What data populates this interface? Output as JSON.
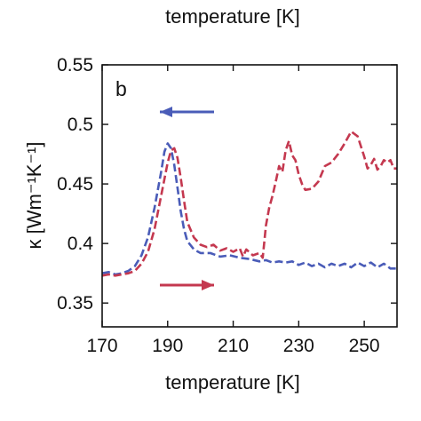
{
  "header": {
    "top_label": "temperature [K]"
  },
  "chart_data": {
    "type": "line",
    "panel_label": "b",
    "xlabel": "temperature [K]",
    "ylabel": "κ [Wm⁻¹K⁻¹]",
    "xlim": [
      170,
      260
    ],
    "ylim": [
      0.33,
      0.55
    ],
    "xticks": [
      170,
      190,
      210,
      230,
      250
    ],
    "yticks": [
      0.35,
      0.4,
      0.45,
      0.5,
      0.55
    ],
    "ytick_labels": [
      "0.35",
      "0.4",
      "0.45",
      "0.5",
      "0.55"
    ],
    "grid": false,
    "series": [
      {
        "color": "#4a5cb8",
        "style": "dashed",
        "direction_arrow": "left",
        "points": [
          [
            170,
            0.375
          ],
          [
            172,
            0.376
          ],
          [
            174,
            0.374
          ],
          [
            176,
            0.375
          ],
          [
            178,
            0.377
          ],
          [
            180,
            0.381
          ],
          [
            182,
            0.39
          ],
          [
            184,
            0.405
          ],
          [
            186,
            0.43
          ],
          [
            188,
            0.46
          ],
          [
            189,
            0.477
          ],
          [
            190,
            0.484
          ],
          [
            191,
            0.48
          ],
          [
            192,
            0.466
          ],
          [
            193,
            0.447
          ],
          [
            194,
            0.427
          ],
          [
            195,
            0.412
          ],
          [
            196,
            0.402
          ],
          [
            198,
            0.395
          ],
          [
            200,
            0.392
          ],
          [
            203,
            0.392
          ],
          [
            206,
            0.389
          ],
          [
            209,
            0.39
          ],
          [
            212,
            0.388
          ],
          [
            215,
            0.387
          ],
          [
            218,
            0.385
          ],
          [
            220,
            0.386
          ],
          [
            222,
            0.384
          ],
          [
            224,
            0.385
          ],
          [
            226,
            0.384
          ],
          [
            228,
            0.385
          ],
          [
            230,
            0.382
          ],
          [
            232,
            0.384
          ],
          [
            234,
            0.381
          ],
          [
            236,
            0.383
          ],
          [
            238,
            0.38
          ],
          [
            240,
            0.383
          ],
          [
            242,
            0.381
          ],
          [
            244,
            0.383
          ],
          [
            246,
            0.38
          ],
          [
            248,
            0.384
          ],
          [
            250,
            0.381
          ],
          [
            252,
            0.384
          ],
          [
            254,
            0.38
          ],
          [
            256,
            0.383
          ],
          [
            258,
            0.379
          ],
          [
            260,
            0.379
          ]
        ]
      },
      {
        "color": "#c4384f",
        "style": "dashed",
        "direction_arrow": "right",
        "points": [
          [
            170,
            0.373
          ],
          [
            172,
            0.374
          ],
          [
            174,
            0.373
          ],
          [
            176,
            0.374
          ],
          [
            178,
            0.375
          ],
          [
            180,
            0.377
          ],
          [
            182,
            0.383
          ],
          [
            184,
            0.393
          ],
          [
            186,
            0.412
          ],
          [
            188,
            0.44
          ],
          [
            190,
            0.468
          ],
          [
            191,
            0.478
          ],
          [
            192,
            0.48
          ],
          [
            193,
            0.472
          ],
          [
            194,
            0.455
          ],
          [
            195,
            0.436
          ],
          [
            196,
            0.418
          ],
          [
            198,
            0.405
          ],
          [
            200,
            0.399
          ],
          [
            202,
            0.397
          ],
          [
            204,
            0.399
          ],
          [
            206,
            0.394
          ],
          [
            208,
            0.396
          ],
          [
            210,
            0.393
          ],
          [
            212,
            0.396
          ],
          [
            213,
            0.389
          ],
          [
            214,
            0.395
          ],
          [
            216,
            0.39
          ],
          [
            218,
            0.392
          ],
          [
            219,
            0.388
          ],
          [
            220,
            0.415
          ],
          [
            221,
            0.43
          ],
          [
            222,
            0.44
          ],
          [
            223,
            0.452
          ],
          [
            224,
            0.465
          ],
          [
            225,
            0.46
          ],
          [
            226,
            0.478
          ],
          [
            227,
            0.486
          ],
          [
            228,
            0.474
          ],
          [
            229,
            0.47
          ],
          [
            230,
            0.458
          ],
          [
            231,
            0.45
          ],
          [
            232,
            0.445
          ],
          [
            234,
            0.446
          ],
          [
            236,
            0.452
          ],
          [
            238,
            0.465
          ],
          [
            240,
            0.468
          ],
          [
            242,
            0.475
          ],
          [
            244,
            0.484
          ],
          [
            246,
            0.494
          ],
          [
            248,
            0.49
          ],
          [
            250,
            0.473
          ],
          [
            251,
            0.463
          ],
          [
            252,
            0.466
          ],
          [
            253,
            0.471
          ],
          [
            254,
            0.462
          ],
          [
            255,
            0.465
          ],
          [
            256,
            0.47
          ],
          [
            257,
            0.468
          ],
          [
            258,
            0.47
          ],
          [
            259,
            0.463
          ],
          [
            260,
            0.463
          ]
        ]
      }
    ]
  }
}
